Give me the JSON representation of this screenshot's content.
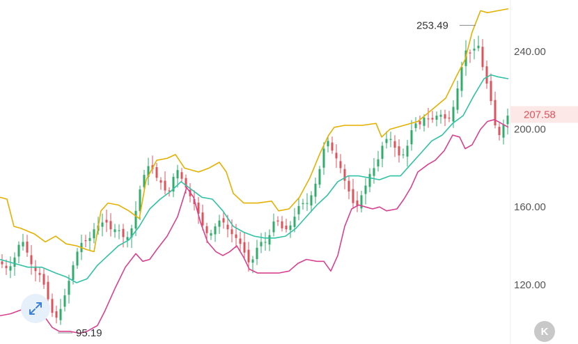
{
  "chart_data": {
    "type": "candlestick",
    "title": "",
    "ylim": [
      95,
      262
    ],
    "y_ticks": [
      "240.00",
      "200.00",
      "160.00",
      "120.00"
    ],
    "y_tick_values": [
      240,
      200,
      160,
      120
    ],
    "high_annotation": {
      "label": "253.49",
      "value": 253.49
    },
    "low_annotation": {
      "label": "95.19",
      "value": 95.19
    },
    "current_price": {
      "label": "207.58",
      "value": 207.58
    },
    "colors": {
      "up": "#2fae6a",
      "down": "#e0525a",
      "upper_band": "#e6b000",
      "middle_band": "#2fc2a4",
      "lower_band": "#d9408f",
      "price_tag_bg": "#fde8e8",
      "price_tag_text": "#e0525a"
    },
    "upper_band": [
      [
        0,
        165
      ],
      [
        10,
        164
      ],
      [
        20,
        150
      ],
      [
        30,
        149
      ],
      [
        50,
        146
      ],
      [
        65,
        142
      ],
      [
        80,
        145
      ],
      [
        95,
        141
      ],
      [
        110,
        140
      ],
      [
        125,
        138
      ],
      [
        135,
        137
      ],
      [
        145,
        158
      ],
      [
        155,
        162
      ],
      [
        170,
        161
      ],
      [
        185,
        158
      ],
      [
        200,
        154
      ],
      [
        210,
        174
      ],
      [
        225,
        184
      ],
      [
        240,
        185
      ],
      [
        252,
        187
      ],
      [
        265,
        180
      ],
      [
        285,
        178
      ],
      [
        300,
        180
      ],
      [
        315,
        183
      ],
      [
        325,
        178
      ],
      [
        335,
        167
      ],
      [
        350,
        162
      ],
      [
        370,
        162
      ],
      [
        390,
        163
      ],
      [
        400,
        158
      ],
      [
        415,
        159
      ],
      [
        430,
        165
      ],
      [
        445,
        175
      ],
      [
        460,
        188
      ],
      [
        472,
        197
      ],
      [
        480,
        201
      ],
      [
        495,
        202
      ],
      [
        520,
        202
      ],
      [
        540,
        203
      ],
      [
        548,
        196
      ],
      [
        560,
        200
      ],
      [
        580,
        202
      ],
      [
        600,
        204
      ],
      [
        620,
        210
      ],
      [
        640,
        216
      ],
      [
        655,
        227
      ],
      [
        668,
        236
      ],
      [
        678,
        250
      ],
      [
        690,
        261
      ],
      [
        700,
        260
      ],
      [
        715,
        261
      ],
      [
        730,
        262
      ]
    ],
    "middle_band": [
      [
        0,
        133
      ],
      [
        20,
        131
      ],
      [
        40,
        129
      ],
      [
        60,
        129
      ],
      [
        80,
        126
      ],
      [
        95,
        124
      ],
      [
        110,
        121
      ],
      [
        125,
        123
      ],
      [
        140,
        130
      ],
      [
        155,
        135
      ],
      [
        170,
        140
      ],
      [
        185,
        143
      ],
      [
        200,
        150
      ],
      [
        215,
        159
      ],
      [
        230,
        164
      ],
      [
        245,
        168
      ],
      [
        260,
        173
      ],
      [
        275,
        169
      ],
      [
        290,
        165
      ],
      [
        305,
        164
      ],
      [
        320,
        158
      ],
      [
        335,
        150
      ],
      [
        350,
        147
      ],
      [
        365,
        145
      ],
      [
        380,
        144
      ],
      [
        395,
        144
      ],
      [
        410,
        145
      ],
      [
        425,
        149
      ],
      [
        440,
        155
      ],
      [
        455,
        161
      ],
      [
        470,
        166
      ],
      [
        485,
        173
      ],
      [
        500,
        176
      ],
      [
        515,
        176
      ],
      [
        530,
        175
      ],
      [
        545,
        174
      ],
      [
        560,
        176
      ],
      [
        575,
        176
      ],
      [
        590,
        182
      ],
      [
        605,
        188
      ],
      [
        620,
        194
      ],
      [
        635,
        197
      ],
      [
        650,
        203
      ],
      [
        665,
        207
      ],
      [
        680,
        217
      ],
      [
        695,
        226
      ],
      [
        705,
        228
      ],
      [
        715,
        227
      ],
      [
        730,
        226
      ]
    ],
    "lower_band": [
      [
        0,
        104
      ],
      [
        15,
        105
      ],
      [
        30,
        107
      ],
      [
        50,
        107
      ],
      [
        65,
        103
      ],
      [
        75,
        98
      ],
      [
        85,
        96
      ],
      [
        100,
        96
      ],
      [
        115,
        95
      ],
      [
        125,
        96
      ],
      [
        140,
        99
      ],
      [
        150,
        106
      ],
      [
        165,
        118
      ],
      [
        180,
        129
      ],
      [
        195,
        136
      ],
      [
        205,
        132
      ],
      [
        215,
        133
      ],
      [
        225,
        138
      ],
      [
        240,
        145
      ],
      [
        255,
        155
      ],
      [
        268,
        170
      ],
      [
        278,
        165
      ],
      [
        288,
        152
      ],
      [
        298,
        142
      ],
      [
        310,
        137
      ],
      [
        320,
        135
      ],
      [
        330,
        137
      ],
      [
        340,
        140
      ],
      [
        350,
        134
      ],
      [
        358,
        128
      ],
      [
        370,
        126
      ],
      [
        385,
        126
      ],
      [
        400,
        126
      ],
      [
        415,
        127
      ],
      [
        428,
        131
      ],
      [
        440,
        133
      ],
      [
        455,
        132
      ],
      [
        465,
        132
      ],
      [
        475,
        127
      ],
      [
        485,
        135
      ],
      [
        495,
        150
      ],
      [
        505,
        159
      ],
      [
        515,
        161
      ],
      [
        525,
        160
      ],
      [
        535,
        159
      ],
      [
        545,
        160
      ],
      [
        555,
        158
      ],
      [
        570,
        159
      ],
      [
        580,
        164
      ],
      [
        590,
        170
      ],
      [
        600,
        178
      ],
      [
        615,
        182
      ],
      [
        625,
        184
      ],
      [
        638,
        189
      ],
      [
        650,
        197
      ],
      [
        660,
        196
      ],
      [
        668,
        190
      ],
      [
        678,
        192
      ],
      [
        690,
        200
      ],
      [
        700,
        204
      ],
      [
        710,
        205
      ],
      [
        720,
        203
      ],
      [
        730,
        201
      ]
    ],
    "price_path": [
      [
        0,
        132
      ],
      [
        6,
        129
      ],
      [
        12,
        128
      ],
      [
        18,
        131
      ],
      [
        24,
        137
      ],
      [
        30,
        144
      ],
      [
        36,
        140
      ],
      [
        42,
        133
      ],
      [
        48,
        128
      ],
      [
        54,
        126
      ],
      [
        60,
        124
      ],
      [
        66,
        116
      ],
      [
        72,
        109
      ],
      [
        78,
        102
      ],
      [
        84,
        104
      ],
      [
        90,
        111
      ],
      [
        96,
        118
      ],
      [
        102,
        126
      ],
      [
        108,
        134
      ],
      [
        114,
        140
      ],
      [
        120,
        143
      ],
      [
        126,
        142
      ],
      [
        132,
        146
      ],
      [
        138,
        151
      ],
      [
        144,
        150
      ],
      [
        150,
        154
      ],
      [
        156,
        150
      ],
      [
        162,
        147
      ],
      [
        168,
        150
      ],
      [
        174,
        146
      ],
      [
        180,
        143
      ],
      [
        186,
        146
      ],
      [
        192,
        152
      ],
      [
        198,
        164
      ],
      [
        204,
        174
      ],
      [
        210,
        179
      ],
      [
        216,
        183
      ],
      [
        222,
        176
      ],
      [
        228,
        174
      ],
      [
        234,
        171
      ],
      [
        240,
        166
      ],
      [
        246,
        170
      ],
      [
        252,
        181
      ],
      [
        258,
        177
      ],
      [
        264,
        172
      ],
      [
        270,
        168
      ],
      [
        276,
        163
      ],
      [
        282,
        160
      ],
      [
        288,
        153
      ],
      [
        294,
        148
      ],
      [
        300,
        145
      ],
      [
        306,
        148
      ],
      [
        312,
        152
      ],
      [
        318,
        154
      ],
      [
        324,
        150
      ],
      [
        330,
        147
      ],
      [
        336,
        145
      ],
      [
        342,
        143
      ],
      [
        348,
        139
      ],
      [
        354,
        134
      ],
      [
        360,
        129
      ],
      [
        366,
        137
      ],
      [
        372,
        141
      ],
      [
        378,
        143
      ],
      [
        384,
        141
      ],
      [
        390,
        150
      ],
      [
        396,
        155
      ],
      [
        402,
        150
      ],
      [
        408,
        148
      ],
      [
        414,
        149
      ],
      [
        420,
        152
      ],
      [
        426,
        158
      ],
      [
        432,
        163
      ],
      [
        438,
        161
      ],
      [
        444,
        163
      ],
      [
        450,
        169
      ],
      [
        456,
        175
      ],
      [
        462,
        184
      ],
      [
        468,
        196
      ],
      [
        474,
        192
      ],
      [
        480,
        186
      ],
      [
        486,
        184
      ],
      [
        492,
        176
      ],
      [
        498,
        171
      ],
      [
        504,
        165
      ],
      [
        510,
        159
      ],
      [
        516,
        162
      ],
      [
        522,
        170
      ],
      [
        528,
        172
      ],
      [
        534,
        182
      ],
      [
        540,
        178
      ],
      [
        546,
        191
      ],
      [
        552,
        192
      ],
      [
        558,
        198
      ],
      [
        564,
        192
      ],
      [
        570,
        189
      ],
      [
        576,
        184
      ],
      [
        582,
        190
      ],
      [
        588,
        193
      ],
      [
        594,
        206
      ],
      [
        600,
        200
      ],
      [
        606,
        205
      ],
      [
        612,
        207
      ],
      [
        618,
        204
      ],
      [
        624,
        206
      ],
      [
        630,
        208
      ],
      [
        636,
        207
      ],
      [
        642,
        204
      ],
      [
        648,
        207
      ],
      [
        654,
        216
      ],
      [
        660,
        226
      ],
      [
        666,
        238
      ],
      [
        672,
        243
      ],
      [
        678,
        235
      ],
      [
        684,
        248
      ],
      [
        690,
        238
      ],
      [
        696,
        226
      ],
      [
        702,
        221
      ],
      [
        708,
        208
      ],
      [
        714,
        196
      ],
      [
        720,
        198
      ],
      [
        726,
        207
      ],
      [
        730,
        207
      ]
    ]
  },
  "ui": {
    "expand_icon": "expand-arrows-icon",
    "logo_letter": "K"
  }
}
